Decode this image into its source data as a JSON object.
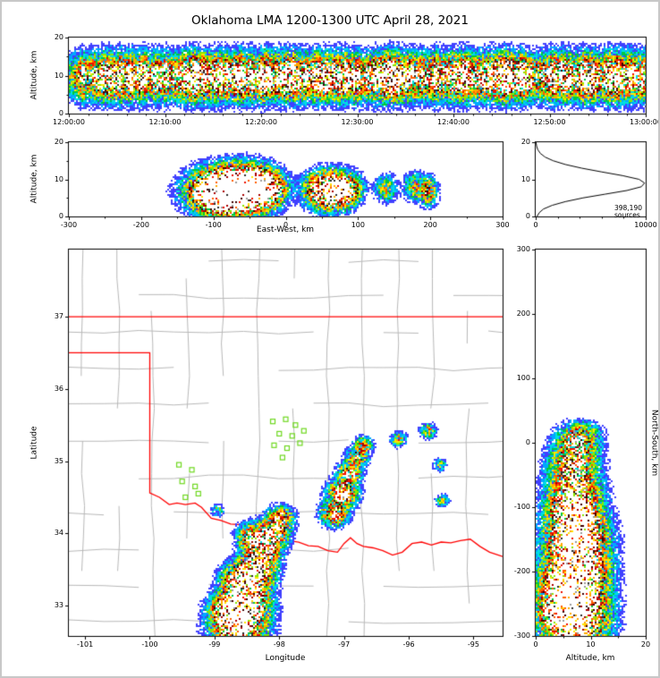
{
  "title": "Oklahoma LMA 1200-1300 UTC April 28, 2021",
  "colors": {
    "background": "#ffffff",
    "frame": "#c8c8c8",
    "axis": "#000000",
    "county_line": "#b8b8b8",
    "state_border": "#ff0000",
    "station_marker": "#6fd820",
    "histogram_line": "#000000"
  },
  "colormap": [
    {
      "t": 0.03,
      "c": "#4040ff"
    },
    {
      "t": 0.075,
      "c": "#00a8ff"
    },
    {
      "t": 0.13,
      "c": "#00e0e0"
    },
    {
      "t": 0.19,
      "c": "#00c840"
    },
    {
      "t": 0.26,
      "c": "#8ce800"
    },
    {
      "t": 0.34,
      "c": "#ffe400"
    },
    {
      "t": 0.43,
      "c": "#ffa800"
    },
    {
      "t": 0.52,
      "c": "#ff5c00"
    },
    {
      "t": 0.61,
      "c": "#ee1000"
    },
    {
      "t": 0.7,
      "c": "#a80000"
    },
    {
      "t": 0.78,
      "c": "#400000"
    },
    {
      "t": 0.85,
      "c": "#2e2e2e"
    },
    {
      "t": 0.91,
      "c": "#9a9a9a"
    },
    {
      "t": 0.96,
      "c": "#ffffff"
    }
  ],
  "chart_data": {
    "type": "heatmap",
    "title": "Oklahoma LMA 1200-1300 UTC April 28, 2021",
    "total_sources": "398,190",
    "projection": {
      "center_lon": -97.7,
      "center_lat": 35.25,
      "km_per_deg_lon": 89.5,
      "km_per_deg_lat": 111
    },
    "panels": [
      {
        "id": "time_height",
        "ylabel": "Altitude, km",
        "x_range_minutes": [
          0,
          60
        ],
        "x_ticks": [
          {
            "v": 0,
            "label": "12:00:00"
          },
          {
            "v": 10,
            "label": "12:10:00"
          },
          {
            "v": 20,
            "label": "12:20:00"
          },
          {
            "v": 30,
            "label": "12:30:00"
          },
          {
            "v": 40,
            "label": "12:40:00"
          },
          {
            "v": 50,
            "label": "12:50:00"
          },
          {
            "v": 60,
            "label": "13:00:00"
          }
        ],
        "x_minor_step": 2,
        "y_range": [
          0,
          20
        ],
        "y_ticks": [
          0,
          10,
          20
        ],
        "y_minor": [
          5,
          15
        ],
        "band": {
          "alt_mean": 9.6,
          "alt_sigma": 3.2,
          "base_amp": 0.35,
          "burst_sigma_min": 1.1
        },
        "bursts": [
          {
            "t": 2.0,
            "a": 0.55
          },
          {
            "t": 4.5,
            "a": 0.8
          },
          {
            "t": 7.0,
            "a": 0.6
          },
          {
            "t": 9.5,
            "a": 0.9
          },
          {
            "t": 12.0,
            "a": 0.7
          },
          {
            "t": 14.0,
            "a": 1.05
          },
          {
            "t": 16.5,
            "a": 0.75
          },
          {
            "t": 19.0,
            "a": 0.9
          },
          {
            "t": 21.5,
            "a": 1.1
          },
          {
            "t": 24.0,
            "a": 0.7
          },
          {
            "t": 26.5,
            "a": 0.85
          },
          {
            "t": 29.0,
            "a": 0.6
          },
          {
            "t": 31.5,
            "a": 0.95
          },
          {
            "t": 34.0,
            "a": 1.1
          },
          {
            "t": 36.5,
            "a": 0.7
          },
          {
            "t": 39.0,
            "a": 0.85
          },
          {
            "t": 41.5,
            "a": 0.75
          },
          {
            "t": 44.0,
            "a": 0.95
          },
          {
            "t": 46.5,
            "a": 1.05
          },
          {
            "t": 49.0,
            "a": 0.8
          },
          {
            "t": 51.5,
            "a": 1.0
          },
          {
            "t": 54.0,
            "a": 0.85
          },
          {
            "t": 56.5,
            "a": 0.9
          },
          {
            "t": 59.0,
            "a": 0.7
          }
        ]
      },
      {
        "id": "ew_height",
        "xlabel": "East-West, km",
        "ylabel": "Altitude, km",
        "x_range": [
          -300,
          300
        ],
        "x_ticks": [
          -300,
          -200,
          -100,
          0,
          100,
          200,
          300
        ],
        "x_minor_step": 50,
        "y_range": [
          0,
          20
        ],
        "y_ticks": [
          0,
          10,
          20
        ],
        "y_minor": [
          5,
          15
        ]
      },
      {
        "id": "source_histogram",
        "x_range": [
          0,
          10000
        ],
        "x_ticks": [
          0,
          10000
        ],
        "x_minor_step": 2000,
        "y_range": [
          0,
          20
        ],
        "y_ticks": [
          0,
          10,
          20
        ],
        "annotation": "398,190 sources",
        "bin_km": 1,
        "alt_bins": [
          0,
          1,
          2,
          3,
          4,
          5,
          6,
          7,
          8,
          9,
          10,
          11,
          12,
          13,
          14,
          15,
          16,
          17,
          18,
          19,
          20
        ],
        "counts": [
          120,
          320,
          700,
          1500,
          2700,
          4300,
          6300,
          8300,
          9600,
          9900,
          9400,
          7900,
          6000,
          4200,
          2700,
          1600,
          850,
          420,
          190,
          80,
          30
        ]
      },
      {
        "id": "plan_map",
        "xlabel": "Longitude",
        "ylabel": "Latitude",
        "lon_range": [
          -101.25,
          -94.55
        ],
        "lat_range": [
          32.58,
          37.93
        ],
        "x_ticks": [
          -101,
          -100,
          -99,
          -98,
          -97,
          -96,
          -95
        ],
        "y_ticks": [
          33,
          34,
          35,
          36,
          37
        ],
        "state_border": {
          "north_lat": 37.0,
          "panhandle_lat": 36.5,
          "west_lon": -100.0,
          "west_lon_south_lat": 34.56,
          "red_river": [
            [
              -100.0,
              34.56
            ],
            [
              -99.85,
              34.5
            ],
            [
              -99.7,
              34.4
            ],
            [
              -99.58,
              34.42
            ],
            [
              -99.45,
              34.4
            ],
            [
              -99.3,
              34.42
            ],
            [
              -99.2,
              34.36
            ],
            [
              -99.05,
              34.21
            ],
            [
              -98.9,
              34.18
            ],
            [
              -98.75,
              34.13
            ],
            [
              -98.6,
              34.12
            ],
            [
              -98.45,
              34.06
            ],
            [
              -98.3,
              34.12
            ],
            [
              -98.15,
              34.11
            ],
            [
              -98.0,
              34.02
            ],
            [
              -97.85,
              33.9
            ],
            [
              -97.7,
              33.88
            ],
            [
              -97.55,
              33.83
            ],
            [
              -97.4,
              33.82
            ],
            [
              -97.25,
              33.76
            ],
            [
              -97.1,
              33.74
            ],
            [
              -97.0,
              33.86
            ],
            [
              -96.9,
              33.94
            ],
            [
              -96.8,
              33.86
            ],
            [
              -96.7,
              33.82
            ],
            [
              -96.55,
              33.8
            ],
            [
              -96.4,
              33.76
            ],
            [
              -96.25,
              33.7
            ],
            [
              -96.1,
              33.74
            ],
            [
              -95.95,
              33.86
            ],
            [
              -95.8,
              33.88
            ],
            [
              -95.65,
              33.84
            ],
            [
              -95.5,
              33.88
            ],
            [
              -95.35,
              33.87
            ],
            [
              -95.2,
              33.9
            ],
            [
              -95.05,
              33.92
            ],
            [
              -94.9,
              33.82
            ],
            [
              -94.75,
              33.74
            ],
            [
              -94.55,
              33.68
            ]
          ]
        },
        "stations": [
          [
            -98.1,
            35.55
          ],
          [
            -97.9,
            35.58
          ],
          [
            -97.75,
            35.5
          ],
          [
            -98.0,
            35.38
          ],
          [
            -97.8,
            35.35
          ],
          [
            -97.62,
            35.42
          ],
          [
            -98.08,
            35.22
          ],
          [
            -97.88,
            35.18
          ],
          [
            -97.68,
            35.25
          ],
          [
            -97.95,
            35.05
          ],
          [
            -99.55,
            34.95
          ],
          [
            -99.35,
            34.88
          ],
          [
            -99.5,
            34.72
          ],
          [
            -99.3,
            34.65
          ],
          [
            -99.45,
            34.5
          ],
          [
            -99.25,
            34.55
          ]
        ]
      },
      {
        "id": "ns_height",
        "xlabel": "Altitude, km",
        "ylabel": "North-South, km",
        "x_range": [
          0,
          20
        ],
        "x_ticks": [
          0,
          10,
          20
        ],
        "x_minor": [
          5,
          15
        ],
        "y_range": [
          -300,
          300
        ],
        "y_ticks": [
          300,
          200,
          100,
          0,
          -100,
          -200,
          -300
        ]
      }
    ],
    "storm_cells": [
      {
        "lon": -98.62,
        "lat": 32.72,
        "alt": 7.0,
        "as": 3.2,
        "r": 20,
        "amp": 1.05
      },
      {
        "lon": -98.5,
        "lat": 33.05,
        "alt": 7.0,
        "as": 3.0,
        "r": 17,
        "amp": 1.0
      },
      {
        "lon": -98.77,
        "lat": 32.95,
        "alt": 6.0,
        "as": 3.0,
        "r": 14,
        "amp": 0.85
      },
      {
        "lon": -98.62,
        "lat": 33.35,
        "alt": 6.5,
        "as": 2.8,
        "r": 13,
        "amp": 0.8
      },
      {
        "lon": -98.38,
        "lat": 33.45,
        "alt": 7.5,
        "as": 3.0,
        "r": 15,
        "amp": 0.9
      },
      {
        "lon": -98.25,
        "lat": 33.75,
        "alt": 7.5,
        "as": 3.0,
        "r": 13,
        "amp": 0.8
      },
      {
        "lon": -98.42,
        "lat": 33.95,
        "alt": 7.0,
        "as": 2.8,
        "r": 11,
        "amp": 0.6
      },
      {
        "lon": -98.1,
        "lat": 34.0,
        "alt": 7.5,
        "as": 2.8,
        "r": 12,
        "amp": 0.72
      },
      {
        "lon": -97.98,
        "lat": 34.2,
        "alt": 7.5,
        "as": 2.6,
        "r": 10,
        "amp": 0.6
      },
      {
        "lon": -97.15,
        "lat": 34.28,
        "alt": 7.0,
        "as": 2.6,
        "r": 10,
        "amp": 0.7
      },
      {
        "lon": -97.02,
        "lat": 34.55,
        "alt": 7.0,
        "as": 2.6,
        "r": 11,
        "amp": 0.8
      },
      {
        "lon": -96.92,
        "lat": 34.82,
        "alt": 7.0,
        "as": 2.4,
        "r": 9,
        "amp": 0.62
      },
      {
        "lon": -96.8,
        "lat": 35.05,
        "alt": 7.0,
        "as": 2.4,
        "r": 8,
        "amp": 0.5
      },
      {
        "lon": -96.7,
        "lat": 35.22,
        "alt": 7.5,
        "as": 2.2,
        "r": 7,
        "amp": 0.4
      },
      {
        "lon": -96.15,
        "lat": 35.3,
        "alt": 7.5,
        "as": 2.0,
        "r": 6,
        "amp": 0.3
      },
      {
        "lon": -95.7,
        "lat": 35.42,
        "alt": 8.0,
        "as": 2.0,
        "r": 6,
        "amp": 0.33
      },
      {
        "lon": -95.52,
        "lat": 34.95,
        "alt": 7.0,
        "as": 2.0,
        "r": 5,
        "amp": 0.24
      },
      {
        "lon": -95.48,
        "lat": 34.45,
        "alt": 6.5,
        "as": 2.0,
        "r": 5,
        "amp": 0.27
      },
      {
        "lon": -98.95,
        "lat": 34.32,
        "alt": 5.0,
        "as": 1.8,
        "r": 5,
        "amp": 0.18
      }
    ]
  }
}
